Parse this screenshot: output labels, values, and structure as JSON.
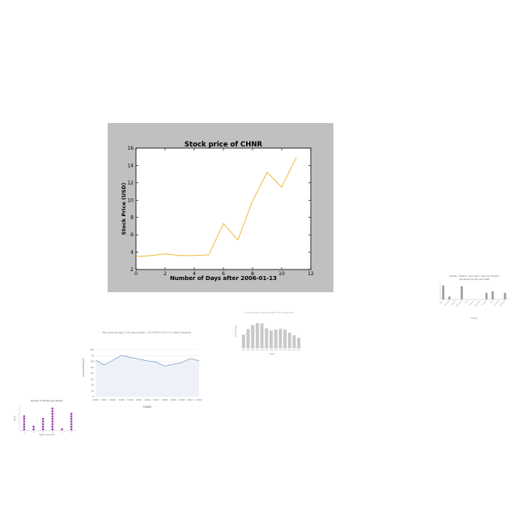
{
  "chart_data": [
    {
      "id": "main",
      "type": "line",
      "title": "Stock price of CHNR",
      "xlabel": "Number of Days after 2006-01-13",
      "ylabel": "Stock Price (USD)",
      "x": [
        0,
        1,
        2,
        3,
        4,
        5,
        6,
        7,
        8,
        9,
        10,
        11
      ],
      "series": [
        {
          "name": "",
          "values": [
            3.5,
            3.6,
            3.8,
            3.6,
            3.6,
            3.7,
            7.3,
            5.4,
            9.9,
            13.2,
            11.5,
            14.9
          ],
          "color": "#f0b429"
        }
      ],
      "xticks": [
        0,
        2,
        4,
        6,
        8,
        10,
        12
      ],
      "yticks": [
        2,
        4,
        6,
        8,
        10,
        12,
        14,
        16
      ],
      "xlim": [
        0,
        12
      ],
      "ylim": [
        2,
        16
      ],
      "grid": false,
      "background": "#c0c0c0"
    },
    {
      "id": "nz",
      "type": "line",
      "title": "Sex ratio by age (100 years older) (15.9093% 2017) in New Zealand",
      "xlabel": "YEARS",
      "ylabel": "MALES/FEMALE",
      "x": [
        "1990",
        "1991",
        "1992",
        "1993",
        "1994",
        "1995",
        "1996",
        "1997",
        "1998",
        "1999",
        "2000",
        "2001",
        "2002"
      ],
      "series": [
        {
          "name": "",
          "values": [
            62,
            54,
            62,
            70,
            67,
            64,
            61,
            59,
            52,
            55,
            58,
            65,
            61
          ],
          "color": "#7fa3d1"
        }
      ],
      "yticks": [
        0,
        10,
        20,
        30,
        40,
        50,
        60,
        70,
        80
      ],
      "ylim": [
        0,
        80
      ]
    },
    {
      "id": "gray-bars",
      "type": "bar",
      "title": "Sex ratio by age (all ages) (US FSPPR: 2017) in United States",
      "xlabel": "YEARS",
      "ylabel": "MALES/FEMALE",
      "categories": [
        "1990",
        "1991",
        "1992",
        "1993",
        "1994",
        "1995",
        "1996",
        "1997",
        "1998",
        "1999",
        "2000",
        "2001",
        "2002"
      ],
      "series": [
        {
          "name": "",
          "values": [
            52,
            74,
            90,
            97,
            96,
            77,
            68,
            72,
            75,
            72,
            60,
            50,
            40
          ],
          "color": "#c8c8c8"
        }
      ],
      "ylim": [
        0,
        120
      ]
    },
    {
      "id": "quality",
      "type": "bar",
      "title": "Quality - Malaria - Sex: both - Age: 15-70 years",
      "subtitle": "(Numbers) for the year 2002",
      "xlabel": "Country",
      "ylabel": "",
      "categories": [
        "Brazil",
        "Colombia",
        "Ecuador",
        "Guatemala",
        "Haiti",
        "Honduras",
        "Nicaragua",
        "Panama",
        "Peru",
        "Suriname",
        "Venezuela"
      ],
      "series": [
        {
          "name": "",
          "values": [
            95,
            20,
            0,
            90,
            0,
            0,
            0,
            45,
            55,
            0,
            45
          ],
          "color": "#9e9e9e"
        }
      ],
      "ylim": [
        0,
        110
      ]
    },
    {
      "id": "dots",
      "type": "scatter",
      "title": "Number of infected pigs (Weeks)",
      "xlabel": "Region and breed",
      "ylabel": "Count",
      "categories": [
        "A",
        "B",
        "C",
        "D",
        "E",
        "F"
      ],
      "series": [
        {
          "name": "",
          "values": [
            6,
            2,
            5,
            9,
            1,
            7
          ],
          "color": "#9b3fb0"
        }
      ],
      "ylim": [
        0,
        10
      ]
    }
  ]
}
